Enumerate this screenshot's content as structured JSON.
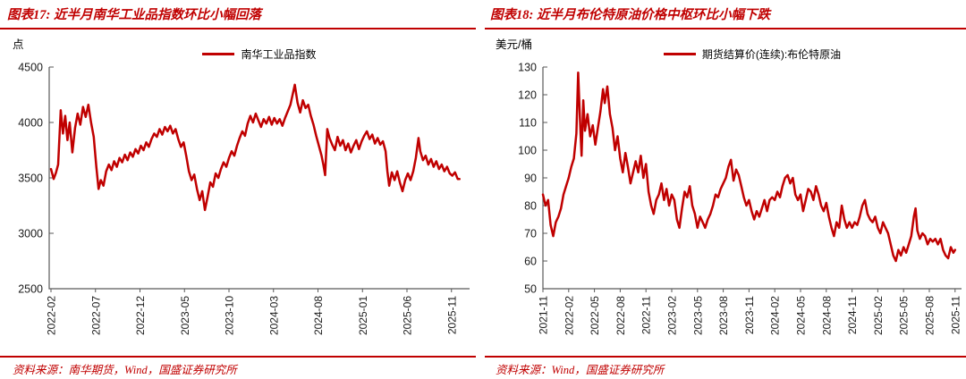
{
  "page": {
    "background": "#ffffff",
    "accent_red": "#C00000"
  },
  "chart_data": [
    {
      "type": "line",
      "panel": "left",
      "title": "图表17: 近半月南华工业品指数环比小幅回落",
      "ylabel_unit": "点",
      "legend_label": "南华工业品指数",
      "legend_position": "top-center",
      "source_note": "资料来源：南华期货，Wind，国盛证券研究所",
      "line_color": "#C00000",
      "axis_color": "#595959",
      "grid": false,
      "ylim": [
        2500,
        4500
      ],
      "yticks": [
        2500,
        3000,
        3500,
        4000,
        4500
      ],
      "x_ticks": [
        "2022-02",
        "2022-07",
        "2022-12",
        "2023-05",
        "2023-10",
        "2024-03",
        "2024-08",
        "2025-01",
        "2025-06",
        "2025-11"
      ],
      "x_tick_months": [
        0,
        5,
        10,
        15,
        20,
        25,
        30,
        35,
        40,
        45
      ],
      "x_unit": "months after 2022-02",
      "points": [
        [
          0,
          3580
        ],
        [
          0.3,
          3490
        ],
        [
          0.55,
          3545
        ],
        [
          0.8,
          3620
        ],
        [
          1.1,
          4110
        ],
        [
          1.35,
          3900
        ],
        [
          1.6,
          4060
        ],
        [
          1.85,
          3840
        ],
        [
          2.1,
          4000
        ],
        [
          2.4,
          3730
        ],
        [
          2.7,
          3950
        ],
        [
          3,
          4080
        ],
        [
          3.3,
          3980
        ],
        [
          3.6,
          4140
        ],
        [
          3.9,
          4050
        ],
        [
          4.2,
          4160
        ],
        [
          4.5,
          4000
        ],
        [
          4.8,
          3870
        ],
        [
          5.1,
          3600
        ],
        [
          5.35,
          3400
        ],
        [
          5.6,
          3480
        ],
        [
          5.9,
          3430
        ],
        [
          6.2,
          3560
        ],
        [
          6.5,
          3620
        ],
        [
          6.8,
          3570
        ],
        [
          7.1,
          3650
        ],
        [
          7.4,
          3600
        ],
        [
          7.7,
          3680
        ],
        [
          8,
          3640
        ],
        [
          8.3,
          3710
        ],
        [
          8.6,
          3660
        ],
        [
          8.9,
          3730
        ],
        [
          9.2,
          3690
        ],
        [
          9.5,
          3760
        ],
        [
          9.8,
          3720
        ],
        [
          10.1,
          3790
        ],
        [
          10.4,
          3750
        ],
        [
          10.7,
          3820
        ],
        [
          11,
          3780
        ],
        [
          11.3,
          3850
        ],
        [
          11.6,
          3900
        ],
        [
          11.9,
          3870
        ],
        [
          12.2,
          3940
        ],
        [
          12.5,
          3890
        ],
        [
          12.8,
          3960
        ],
        [
          13.1,
          3920
        ],
        [
          13.4,
          3970
        ],
        [
          13.7,
          3900
        ],
        [
          14,
          3940
        ],
        [
          14.3,
          3850
        ],
        [
          14.6,
          3780
        ],
        [
          14.9,
          3820
        ],
        [
          15.2,
          3700
        ],
        [
          15.5,
          3560
        ],
        [
          15.8,
          3480
        ],
        [
          16.1,
          3530
        ],
        [
          16.4,
          3400
        ],
        [
          16.7,
          3300
        ],
        [
          17,
          3380
        ],
        [
          17.3,
          3210
        ],
        [
          17.6,
          3330
        ],
        [
          17.9,
          3460
        ],
        [
          18.2,
          3420
        ],
        [
          18.5,
          3540
        ],
        [
          18.8,
          3500
        ],
        [
          19.1,
          3580
        ],
        [
          19.4,
          3640
        ],
        [
          19.7,
          3600
        ],
        [
          20,
          3680
        ],
        [
          20.3,
          3740
        ],
        [
          20.6,
          3700
        ],
        [
          20.9,
          3790
        ],
        [
          21.2,
          3860
        ],
        [
          21.5,
          3920
        ],
        [
          21.8,
          3880
        ],
        [
          22.1,
          3990
        ],
        [
          22.4,
          4060
        ],
        [
          22.7,
          4000
        ],
        [
          23,
          4080
        ],
        [
          23.3,
          4020
        ],
        [
          23.6,
          3960
        ],
        [
          23.9,
          4030
        ],
        [
          24.2,
          3990
        ],
        [
          24.5,
          4050
        ],
        [
          24.8,
          3980
        ],
        [
          25.1,
          4040
        ],
        [
          25.4,
          3990
        ],
        [
          25.7,
          4030
        ],
        [
          26,
          3970
        ],
        [
          26.3,
          4040
        ],
        [
          26.6,
          4100
        ],
        [
          26.9,
          4160
        ],
        [
          27.1,
          4230
        ],
        [
          27.4,
          4340
        ],
        [
          27.7,
          4180
        ],
        [
          28,
          4090
        ],
        [
          28.3,
          4200
        ],
        [
          28.6,
          4130
        ],
        [
          28.9,
          4160
        ],
        [
          29.2,
          4060
        ],
        [
          29.5,
          3980
        ],
        [
          29.8,
          3880
        ],
        [
          30.1,
          3790
        ],
        [
          30.4,
          3700
        ],
        [
          30.6,
          3620
        ],
        [
          30.8,
          3525
        ],
        [
          31.05,
          3940
        ],
        [
          31.3,
          3860
        ],
        [
          31.6,
          3800
        ],
        [
          31.9,
          3750
        ],
        [
          32.2,
          3870
        ],
        [
          32.5,
          3790
        ],
        [
          32.8,
          3840
        ],
        [
          33.1,
          3750
        ],
        [
          33.4,
          3810
        ],
        [
          33.7,
          3730
        ],
        [
          34,
          3790
        ],
        [
          34.3,
          3840
        ],
        [
          34.6,
          3760
        ],
        [
          34.9,
          3830
        ],
        [
          35.2,
          3880
        ],
        [
          35.5,
          3920
        ],
        [
          35.8,
          3850
        ],
        [
          36.1,
          3890
        ],
        [
          36.4,
          3810
        ],
        [
          36.7,
          3860
        ],
        [
          37,
          3800
        ],
        [
          37.3,
          3830
        ],
        [
          37.6,
          3740
        ],
        [
          37.8,
          3560
        ],
        [
          38,
          3430
        ],
        [
          38.3,
          3550
        ],
        [
          38.6,
          3480
        ],
        [
          38.9,
          3560
        ],
        [
          39.2,
          3460
        ],
        [
          39.5,
          3380
        ],
        [
          39.8,
          3480
        ],
        [
          40.1,
          3540
        ],
        [
          40.4,
          3480
        ],
        [
          40.7,
          3560
        ],
        [
          41,
          3680
        ],
        [
          41.3,
          3860
        ],
        [
          41.5,
          3740
        ],
        [
          41.8,
          3660
        ],
        [
          42.1,
          3700
        ],
        [
          42.4,
          3620
        ],
        [
          42.7,
          3670
        ],
        [
          43,
          3600
        ],
        [
          43.3,
          3650
        ],
        [
          43.6,
          3580
        ],
        [
          43.9,
          3620
        ],
        [
          44.2,
          3560
        ],
        [
          44.5,
          3600
        ],
        [
          44.8,
          3540
        ],
        [
          45.1,
          3520
        ],
        [
          45.4,
          3550
        ],
        [
          45.7,
          3490
        ],
        [
          45.9,
          3490
        ]
      ]
    },
    {
      "type": "line",
      "panel": "right",
      "title": "图表18: 近半月布伦特原油价格中枢环比小幅下跌",
      "ylabel_unit": "美元/桶",
      "legend_label": "期货结算价(连续):布伦特原油",
      "legend_position": "top-center",
      "source_note": "资料来源：Wind，国盛证券研究所",
      "line_color": "#C00000",
      "axis_color": "#595959",
      "grid": false,
      "ylim": [
        50,
        130
      ],
      "yticks": [
        50,
        60,
        70,
        80,
        90,
        100,
        110,
        120,
        130
      ],
      "x_ticks": [
        "2021-11",
        "2022-02",
        "2022-05",
        "2022-08",
        "2022-11",
        "2023-02",
        "2023-05",
        "2023-08",
        "2023-11",
        "2024-02",
        "2024-05",
        "2024-08",
        "2024-11",
        "2025-02",
        "2025-05",
        "2025-08",
        "2025-11"
      ],
      "x_tick_months": [
        0,
        3,
        6,
        9,
        12,
        15,
        18,
        21,
        24,
        27,
        30,
        33,
        36,
        39,
        42,
        45,
        48
      ],
      "x_unit": "months after 2021-11",
      "points": [
        [
          0,
          84
        ],
        [
          0.3,
          80
        ],
        [
          0.6,
          82
        ],
        [
          0.9,
          73
        ],
        [
          1.2,
          69
        ],
        [
          1.5,
          74
        ],
        [
          1.8,
          76
        ],
        [
          2.1,
          79
        ],
        [
          2.4,
          84
        ],
        [
          2.7,
          87
        ],
        [
          3,
          90
        ],
        [
          3.3,
          94
        ],
        [
          3.6,
          97
        ],
        [
          3.9,
          106
        ],
        [
          4.1,
          128
        ],
        [
          4.3,
          112
        ],
        [
          4.5,
          98
        ],
        [
          4.7,
          118
        ],
        [
          4.9,
          107
        ],
        [
          5.2,
          113
        ],
        [
          5.5,
          105
        ],
        [
          5.8,
          109
        ],
        [
          6.1,
          102
        ],
        [
          6.4,
          108
        ],
        [
          6.7,
          114
        ],
        [
          7,
          122
        ],
        [
          7.2,
          117
        ],
        [
          7.5,
          123
        ],
        [
          7.8,
          113
        ],
        [
          8.1,
          108
        ],
        [
          8.4,
          100
        ],
        [
          8.7,
          105
        ],
        [
          9,
          97
        ],
        [
          9.3,
          92
        ],
        [
          9.6,
          99
        ],
        [
          9.9,
          94
        ],
        [
          10.2,
          88
        ],
        [
          10.5,
          92
        ],
        [
          10.8,
          96
        ],
        [
          11.1,
          92
        ],
        [
          11.4,
          98
        ],
        [
          11.7,
          90
        ],
        [
          12,
          95
        ],
        [
          12.3,
          85
        ],
        [
          12.6,
          80
        ],
        [
          12.9,
          77
        ],
        [
          13.2,
          82
        ],
        [
          13.5,
          84
        ],
        [
          13.8,
          88
        ],
        [
          14.1,
          82
        ],
        [
          14.4,
          86
        ],
        [
          14.7,
          80
        ],
        [
          15,
          84
        ],
        [
          15.3,
          82
        ],
        [
          15.6,
          75
        ],
        [
          15.9,
          72
        ],
        [
          16.2,
          79
        ],
        [
          16.5,
          85
        ],
        [
          16.8,
          83
        ],
        [
          17.1,
          87
        ],
        [
          17.4,
          80
        ],
        [
          17.7,
          77
        ],
        [
          18,
          72
        ],
        [
          18.3,
          76
        ],
        [
          18.6,
          74
        ],
        [
          18.9,
          72
        ],
        [
          19.2,
          75
        ],
        [
          19.5,
          77
        ],
        [
          19.8,
          80
        ],
        [
          20.1,
          84
        ],
        [
          20.4,
          83
        ],
        [
          20.7,
          86
        ],
        [
          21,
          88
        ],
        [
          21.3,
          90
        ],
        [
          21.6,
          94
        ],
        [
          21.9,
          96.5
        ],
        [
          22.2,
          89
        ],
        [
          22.5,
          93
        ],
        [
          22.8,
          91
        ],
        [
          23.1,
          87
        ],
        [
          23.4,
          83
        ],
        [
          23.7,
          80
        ],
        [
          24,
          82
        ],
        [
          24.3,
          78
        ],
        [
          24.6,
          75
        ],
        [
          24.9,
          78
        ],
        [
          25.2,
          76
        ],
        [
          25.5,
          79
        ],
        [
          25.8,
          82
        ],
        [
          26.1,
          78
        ],
        [
          26.4,
          82
        ],
        [
          26.7,
          83
        ],
        [
          27,
          82
        ],
        [
          27.3,
          85
        ],
        [
          27.6,
          83
        ],
        [
          27.9,
          87
        ],
        [
          28.2,
          90
        ],
        [
          28.5,
          91
        ],
        [
          28.8,
          88
        ],
        [
          29.1,
          90
        ],
        [
          29.4,
          84
        ],
        [
          29.7,
          82
        ],
        [
          30,
          84
        ],
        [
          30.3,
          78
        ],
        [
          30.6,
          82
        ],
        [
          30.9,
          86
        ],
        [
          31.2,
          85
        ],
        [
          31.5,
          82
        ],
        [
          31.8,
          87
        ],
        [
          32.1,
          84
        ],
        [
          32.4,
          80
        ],
        [
          32.7,
          78
        ],
        [
          33,
          81
        ],
        [
          33.3,
          76
        ],
        [
          33.6,
          72
        ],
        [
          33.9,
          69
        ],
        [
          34.2,
          74
        ],
        [
          34.5,
          72
        ],
        [
          34.8,
          80
        ],
        [
          35.1,
          75
        ],
        [
          35.4,
          72
        ],
        [
          35.7,
          74
        ],
        [
          36,
          72
        ],
        [
          36.3,
          74
        ],
        [
          36.6,
          73
        ],
        [
          36.9,
          76
        ],
        [
          37.2,
          80
        ],
        [
          37.5,
          82
        ],
        [
          37.8,
          77
        ],
        [
          38.1,
          75
        ],
        [
          38.4,
          74
        ],
        [
          38.7,
          76
        ],
        [
          39,
          72
        ],
        [
          39.3,
          70
        ],
        [
          39.6,
          74
        ],
        [
          39.9,
          72
        ],
        [
          40.2,
          70
        ],
        [
          40.5,
          66
        ],
        [
          40.8,
          62
        ],
        [
          41.1,
          60
        ],
        [
          41.4,
          64
        ],
        [
          41.7,
          62
        ],
        [
          42,
          65
        ],
        [
          42.3,
          63
        ],
        [
          42.6,
          66
        ],
        [
          42.9,
          69
        ],
        [
          43.2,
          76
        ],
        [
          43.4,
          79
        ],
        [
          43.6,
          71
        ],
        [
          43.9,
          68
        ],
        [
          44.2,
          70
        ],
        [
          44.5,
          69
        ],
        [
          44.8,
          66
        ],
        [
          45.1,
          68
        ],
        [
          45.4,
          67
        ],
        [
          45.7,
          68
        ],
        [
          46,
          66
        ],
        [
          46.3,
          68
        ],
        [
          46.6,
          64
        ],
        [
          46.9,
          62
        ],
        [
          47.2,
          61
        ],
        [
          47.5,
          65
        ],
        [
          47.8,
          63
        ],
        [
          48,
          64
        ]
      ]
    }
  ]
}
